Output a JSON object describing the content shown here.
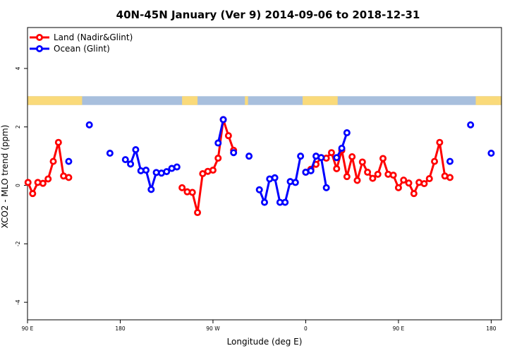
{
  "chart_data": {
    "type": "line",
    "title": "40N-45N January (Ver 9)   2014-09-06 to 2018-12-31",
    "xlabel": "Longitude (deg E)",
    "ylabel": "XCO2 - MLO trend (ppm)",
    "xlim": [
      90,
      550
    ],
    "ylim": [
      -4.6,
      5.4
    ],
    "x_ticks": [
      {
        "value": 90,
        "label": "90 E"
      },
      {
        "value": 180,
        "label": "180"
      },
      {
        "value": 270,
        "label": "90 W"
      },
      {
        "value": 360,
        "label": "0"
      },
      {
        "value": 450,
        "label": "90 E"
      },
      {
        "value": 540,
        "label": "180"
      }
    ],
    "y_ticks": [
      {
        "value": -4,
        "label": "-4"
      },
      {
        "value": -2,
        "label": "-2"
      },
      {
        "value": 0,
        "label": "0"
      },
      {
        "value": 2,
        "label": "2"
      },
      {
        "value": 4,
        "label": "4"
      }
    ],
    "grid": false,
    "legend_position": "top-left",
    "land_ocean_band": {
      "y_range": [
        2.75,
        3.05
      ],
      "land_color": "#fada7a",
      "ocean_color": "#a8bfdd",
      "land_segments": [
        [
          90,
          143
        ],
        [
          240,
          255
        ],
        [
          301,
          304
        ],
        [
          357,
          391
        ],
        [
          525,
          550
        ]
      ]
    },
    "series": [
      {
        "name": "Land (Nadir&Glint)",
        "color": "#ff0000",
        "segments": [
          [
            [
              90.5,
              0.1
            ],
            [
              95,
              -0.28
            ],
            [
              100,
              0.1
            ],
            [
              105,
              0.07
            ],
            [
              110,
              0.22
            ],
            [
              115,
              0.82
            ],
            [
              120,
              1.47
            ],
            [
              125,
              0.32
            ],
            [
              130,
              0.27
            ]
          ],
          [
            [
              240,
              -0.08
            ],
            [
              245,
              -0.22
            ],
            [
              250,
              -0.24
            ],
            [
              255,
              -0.93
            ],
            [
              260,
              0.4
            ],
            [
              265,
              0.48
            ],
            [
              270,
              0.52
            ],
            [
              275,
              0.93
            ],
            [
              280,
              2.25
            ],
            [
              285,
              1.7
            ],
            [
              290,
              1.2
            ]
          ],
          [
            [
              360,
              0.45
            ],
            [
              365,
              0.55
            ],
            [
              370,
              0.72
            ],
            [
              375,
              0.95
            ],
            [
              380,
              0.93
            ],
            [
              385,
              1.12
            ],
            [
              390,
              0.57
            ],
            [
              395,
              1.2
            ],
            [
              400,
              0.3
            ],
            [
              405,
              0.98
            ],
            [
              410,
              0.17
            ],
            [
              415,
              0.8
            ],
            [
              420,
              0.45
            ],
            [
              425,
              0.24
            ],
            [
              430,
              0.38
            ],
            [
              435,
              0.92
            ],
            [
              440,
              0.38
            ],
            [
              445,
              0.35
            ],
            [
              450,
              -0.08
            ],
            [
              455,
              0.18
            ],
            [
              460,
              0.08
            ],
            [
              465,
              -0.28
            ],
            [
              470,
              0.1
            ],
            [
              475,
              0.06
            ],
            [
              480,
              0.23
            ],
            [
              485,
              0.82
            ],
            [
              490,
              1.47
            ],
            [
              495,
              0.32
            ],
            [
              500,
              0.27
            ]
          ]
        ]
      },
      {
        "name": "Ocean (Glint)",
        "color": "#0000ff",
        "segments": [
          [
            [
              130,
              0.82
            ]
          ],
          [
            [
              150,
              2.07
            ]
          ],
          [
            [
              170,
              1.1
            ]
          ],
          [
            [
              185,
              0.88
            ],
            [
              190,
              0.73
            ],
            [
              195,
              1.22
            ],
            [
              200,
              0.5
            ],
            [
              205,
              0.52
            ],
            [
              210,
              -0.14
            ],
            [
              215,
              0.44
            ],
            [
              220,
              0.42
            ],
            [
              225,
              0.47
            ],
            [
              230,
              0.58
            ],
            [
              235,
              0.63
            ]
          ],
          [
            [
              275,
              1.45
            ],
            [
              280,
              2.25
            ]
          ],
          [
            [
              290,
              1.12
            ]
          ],
          [
            [
              305,
              1.0
            ]
          ],
          [
            [
              315,
              -0.15
            ],
            [
              320,
              -0.58
            ],
            [
              325,
              0.22
            ],
            [
              330,
              0.26
            ],
            [
              335,
              -0.58
            ],
            [
              340,
              -0.58
            ],
            [
              345,
              0.13
            ],
            [
              350,
              0.1
            ],
            [
              355,
              1.0
            ]
          ],
          [
            [
              360,
              0.45
            ],
            [
              365,
              0.5
            ],
            [
              370,
              1.0
            ],
            [
              375,
              0.95
            ],
            [
              380,
              -0.08
            ]
          ],
          [
            [
              390,
              0.95
            ],
            [
              395,
              1.27
            ],
            [
              400,
              1.8
            ]
          ],
          [
            [
              500,
              0.82
            ]
          ],
          [
            [
              520,
              2.07
            ]
          ],
          [
            [
              540,
              1.1
            ]
          ]
        ]
      }
    ]
  }
}
